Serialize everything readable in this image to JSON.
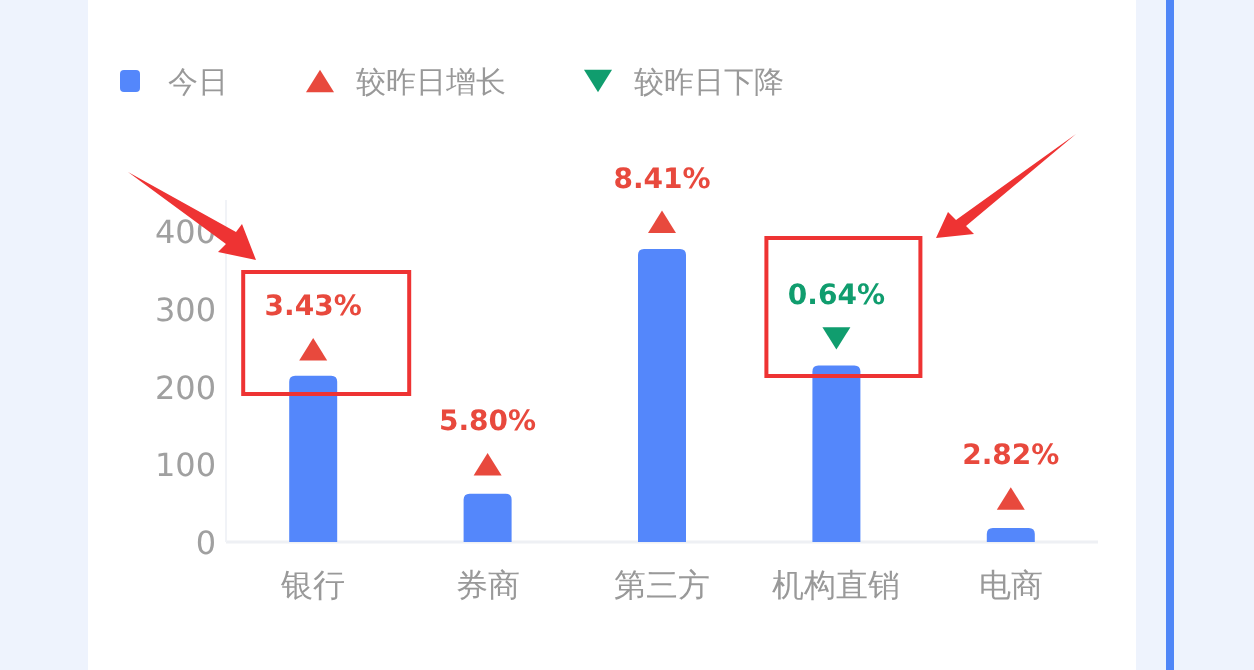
{
  "chart_data": {
    "type": "bar",
    "categories": [
      "银行",
      "券商",
      "第三方",
      "机构直销",
      "电商"
    ],
    "series": [
      {
        "name": "今日",
        "color": "#5487fb",
        "values": [
          214,
          62,
          377,
          227,
          18
        ]
      },
      {
        "name": "较昨日增长",
        "type": "scatter",
        "marker": "triangle",
        "color": "#e8493d",
        "values": [
          248,
          100,
          412,
          null,
          56
        ]
      },
      {
        "name": "较昨日下降",
        "type": "scatter",
        "marker": "triangle",
        "color": "#109d6e",
        "values": [
          null,
          null,
          null,
          262,
          null
        ]
      }
    ],
    "annotations": [
      {
        "text": "3.43%",
        "x": "银行",
        "y": 248
      },
      {
        "text": "5.80%",
        "x": "券商",
        "y": 100
      },
      {
        "text": "8.41%",
        "x": "第三方",
        "y": 412
      },
      {
        "text": "0.64%",
        "x": "机构直销",
        "y": 262
      },
      {
        "text": "2.82%",
        "x": "电商",
        "y": 56
      }
    ],
    "ylim": [
      0,
      440
    ],
    "yticks": [
      0,
      100,
      200,
      300,
      400
    ],
    "grid": false,
    "legend": "top left"
  }
}
